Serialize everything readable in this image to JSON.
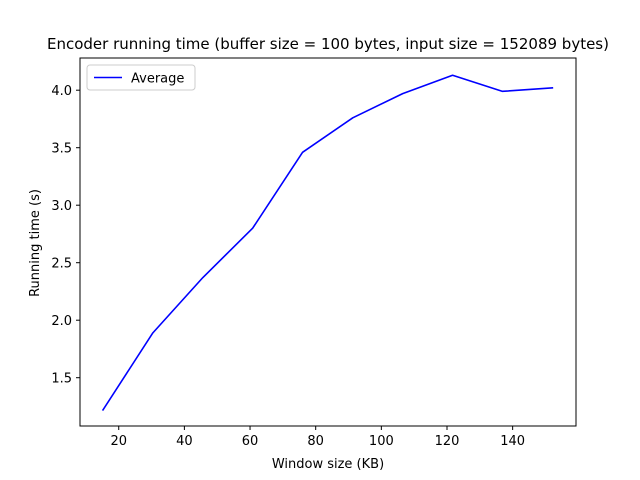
{
  "chart_data": {
    "type": "line",
    "title": "Encoder running time (buffer size = 100 bytes, input size = 152089 bytes)",
    "xlabel": "Window size (KB)",
    "ylabel": "Running time (s)",
    "xlim": [
      8.2,
      159.3
    ],
    "ylim": [
      1.08,
      4.28
    ],
    "xticks": [
      20,
      40,
      60,
      80,
      100,
      120,
      140
    ],
    "yticks": [
      1.5,
      2.0,
      2.5,
      3.0,
      3.5,
      4.0
    ],
    "xtick_labels": [
      "20",
      "40",
      "60",
      "80",
      "100",
      "120",
      "140"
    ],
    "ytick_labels": [
      "1.5",
      "2.0",
      "2.5",
      "3.0",
      "3.5",
      "4.0"
    ],
    "grid": false,
    "legend": {
      "position": "top-left",
      "entries": [
        "Average"
      ]
    },
    "series": [
      {
        "name": "Average",
        "color": "#0000ff",
        "x": [
          15.2,
          30.4,
          45.6,
          60.8,
          76.0,
          91.3,
          106.5,
          121.7,
          136.9,
          152.1
        ],
        "y": [
          1.22,
          1.89,
          2.37,
          2.8,
          3.46,
          3.76,
          3.97,
          4.13,
          3.99,
          4.02
        ]
      }
    ]
  }
}
